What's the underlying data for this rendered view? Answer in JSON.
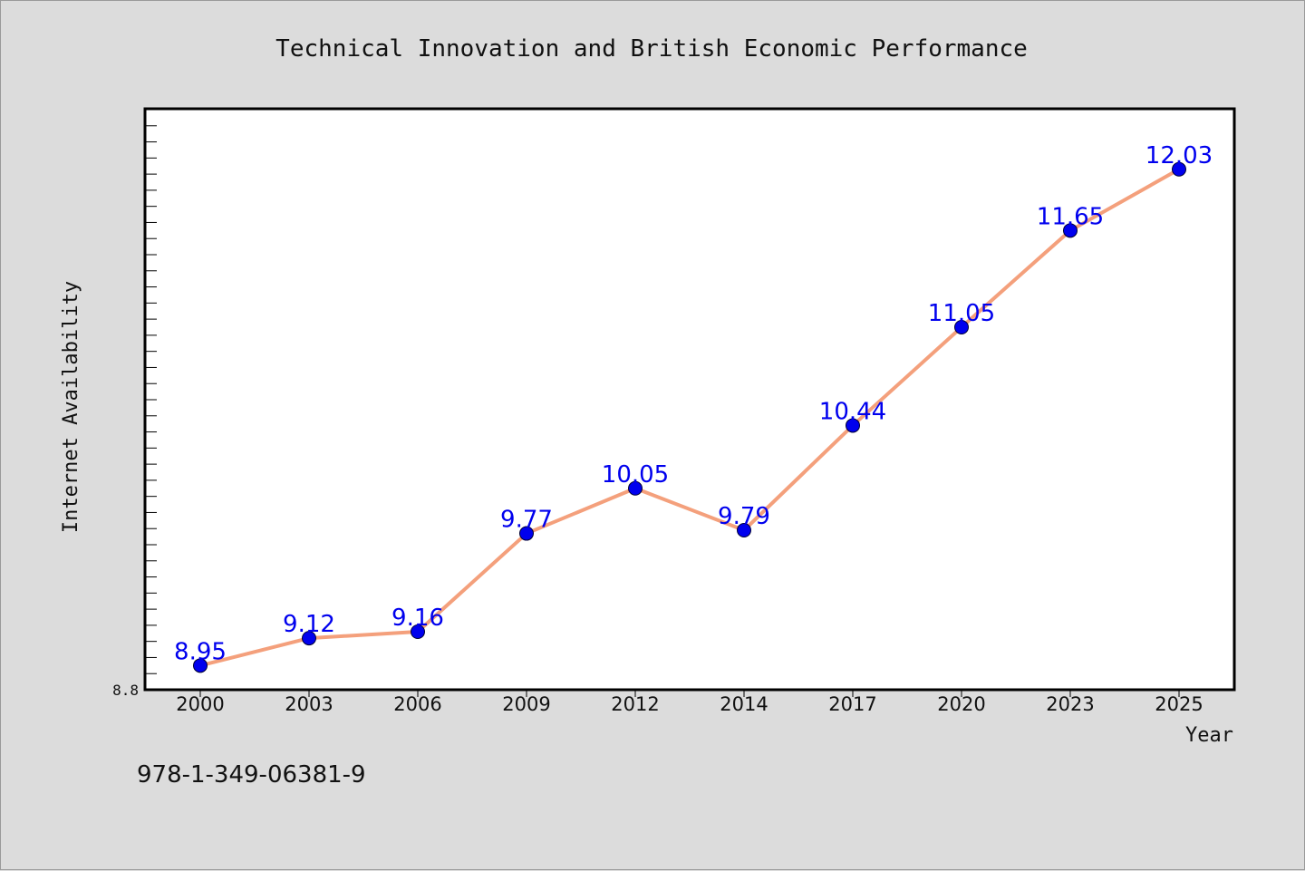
{
  "chart_data": {
    "type": "line",
    "title": "Technical Innovation and British Economic Performance",
    "xlabel": "Year",
    "ylabel": "Internet Availability",
    "categories": [
      "2000",
      "2003",
      "2006",
      "2009",
      "2012",
      "2014",
      "2017",
      "2020",
      "2023",
      "2025"
    ],
    "series": [
      {
        "values": [
          8.95,
          9.12,
          9.16,
          9.77,
          10.05,
          9.79,
          10.44,
          11.05,
          11.65,
          12.03
        ],
        "line_color": "#f4a07c",
        "marker_color": "#0000ee",
        "label_color": "#0000ee"
      }
    ],
    "ylim": [
      8.8,
      12.4
    ],
    "y_tick_labels": [
      "8.8"
    ],
    "grid": false,
    "legend": "none"
  },
  "footer": {
    "isbn": "978-1-349-06381-9"
  }
}
